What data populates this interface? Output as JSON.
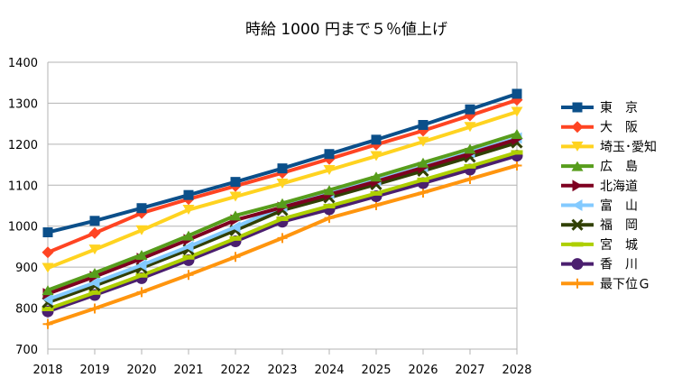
{
  "chart_data": {
    "type": "line",
    "title": "時給 1000 円まで５％値上げ",
    "xlabel": "",
    "ylabel": "",
    "x": [
      2018,
      2019,
      2020,
      2021,
      2022,
      2023,
      2024,
      2025,
      2026,
      2027,
      2028
    ],
    "ylim": [
      700,
      1400
    ],
    "yticks": [
      700,
      800,
      900,
      1000,
      1100,
      1200,
      1300,
      1400
    ],
    "grid": "horizontal",
    "legend": "right",
    "series": [
      {
        "name": "東　京",
        "color": "#0b4f8a",
        "marker": "square",
        "values": [
          985,
          1013,
          1044,
          1076,
          1108,
          1141,
          1176,
          1211,
          1247,
          1285,
          1323
        ]
      },
      {
        "name": "大　阪",
        "color": "#ff4422",
        "marker": "diamond",
        "values": [
          936,
          983,
          1032,
          1066,
          1098,
          1130,
          1164,
          1199,
          1233,
          1270,
          1308
        ]
      },
      {
        "name": "埼玉･愛知",
        "color": "#ffd320",
        "marker": "triangle-down",
        "values": [
          898,
          943,
          990,
          1040,
          1072,
          1104,
          1137,
          1171,
          1206,
          1242,
          1279
        ]
      },
      {
        "name": "広　島",
        "color": "#579d1c",
        "marker": "triangle-up",
        "values": [
          844,
          886,
          930,
          977,
          1026,
          1056,
          1088,
          1121,
          1155,
          1189,
          1225
        ]
      },
      {
        "name": "北海道",
        "color": "#7e0021",
        "marker": "triangle-right",
        "values": [
          835,
          877,
          921,
          967,
          1015,
          1046,
          1077,
          1109,
          1143,
          1177,
          1212
        ]
      },
      {
        "name": "富　山",
        "color": "#83caff",
        "marker": "triangle-left",
        "values": [
          821,
          862,
          905,
          950,
          998,
          1048,
          1080,
          1112,
          1145,
          1180,
          1215
        ]
      },
      {
        "name": "福　岡",
        "color": "#314004",
        "marker": "x",
        "values": [
          814,
          855,
          898,
          943,
          990,
          1039,
          1070,
          1102,
          1135,
          1169,
          1204
        ]
      },
      {
        "name": "宮　城",
        "color": "#aecf00",
        "marker": "dash",
        "values": [
          798,
          838,
          880,
          924,
          970,
          1018,
          1049,
          1080,
          1113,
          1146,
          1180
        ]
      },
      {
        "name": "香　川",
        "color": "#4b1f6f",
        "marker": "circle",
        "values": [
          792,
          832,
          873,
          917,
          963,
          1011,
          1041,
          1073,
          1105,
          1138,
          1172
        ]
      },
      {
        "name": "最下位Ｇ",
        "color": "#ff950e",
        "marker": "plus",
        "values": [
          761,
          799,
          839,
          881,
          925,
          971,
          1020,
          1051,
          1082,
          1115,
          1148
        ]
      }
    ]
  }
}
